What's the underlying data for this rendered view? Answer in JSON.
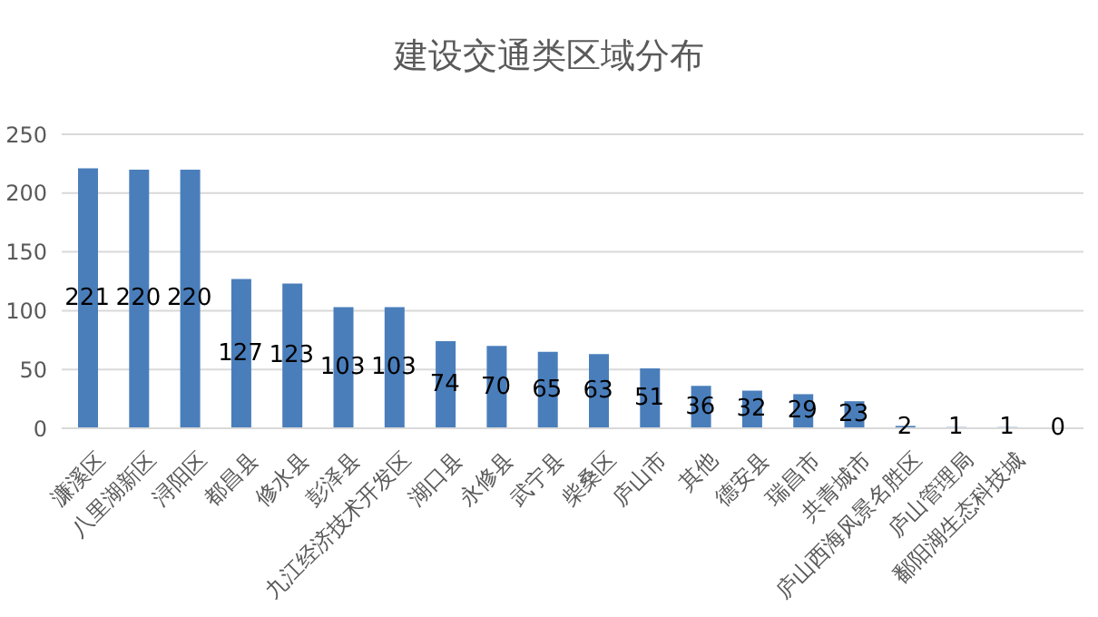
{
  "chart_data": {
    "type": "bar",
    "title": "建设交通类区域分布",
    "categories": [
      "濂溪区",
      "八里湖新区",
      "浔阳区",
      "都昌县",
      "修水县",
      "彭泽县",
      "九江经济技术开发区",
      "湖口县",
      "永修县",
      "武宁县",
      "柴桑区",
      "庐山市",
      "其他",
      "德安县",
      "瑞昌市",
      "共青城市",
      "庐山西海风景名胜区",
      "庐山管理局",
      "鄱阳湖生态科技城",
      null
    ],
    "values": [
      221,
      220,
      220,
      127,
      123,
      103,
      103,
      74,
      70,
      65,
      63,
      51,
      36,
      32,
      29,
      23,
      2,
      1,
      1,
      0
    ],
    "color": "#4a7ebb",
    "ylim": [
      0,
      250
    ],
    "yticks": [
      0,
      50,
      100,
      150,
      200,
      250
    ],
    "grid": "y",
    "data_labels": true
  }
}
